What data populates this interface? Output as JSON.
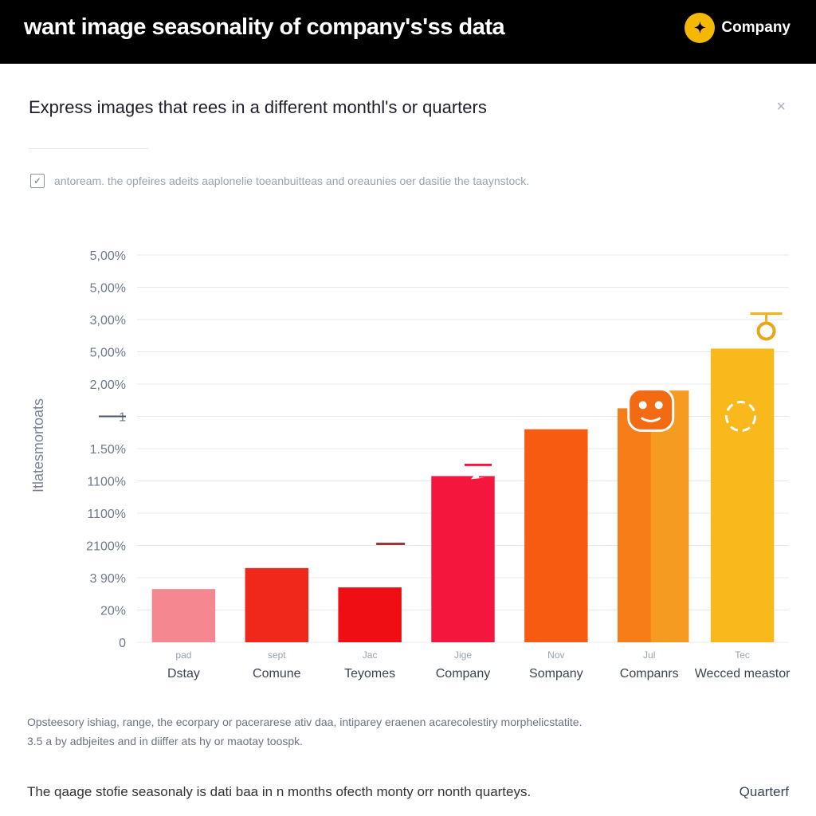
{
  "header": {
    "title": "want image seasonality of company's'ss data",
    "brand_name": "Company",
    "brand_icon": "sun-icon",
    "brand_color": "#f5b800"
  },
  "panel": {
    "subtitle": "Express images that rees in a different monthl's or quarters",
    "close_label": "×",
    "note": "antoream. the opfeires adeits aaplonelie toeanbuitteas and oreaunies oer dasitie the taaynstock."
  },
  "chart_data": {
    "type": "bar",
    "title": "Express images that rees in a different monthl's or quarters",
    "ylabel": "Itlatesmortoats",
    "xlabel": "",
    "y_tick_labels": [
      "0",
      "20%",
      "3 90%",
      "2100%",
      "1100%",
      "1100%",
      "1.50%",
      "1",
      "2,00%",
      "5,00%",
      "3,00%",
      "5,00%",
      "5,00%"
    ],
    "ylim": [
      0,
      12
    ],
    "categories": [
      "Dstay",
      "Comune",
      "Teyomes",
      "Company",
      "Sompany",
      "Companrs",
      "Wecced meastor"
    ],
    "category_sublabels": [
      "pad",
      "sept",
      "Jac",
      "Jige",
      "Nov",
      "Jul",
      "Tec"
    ],
    "values": [
      1.65,
      2.3,
      1.7,
      5.15,
      6.6,
      7.25,
      9.1
    ],
    "overlay_values": [
      null,
      null,
      null,
      null,
      null,
      7.8,
      null
    ],
    "colors": [
      "#f4878f",
      "#f0281c",
      "#ef0e14",
      "#f4163d",
      "#f75b12",
      "#f77d18",
      "#f9b81c"
    ],
    "overlay_colors": [
      null,
      null,
      null,
      null,
      null,
      "#f59b22",
      null
    ],
    "annotation_icons": [
      "",
      "",
      "minus-icon",
      "cursor-icon",
      "",
      "mask-icon",
      "medal-icon"
    ],
    "grid": true
  },
  "footer": {
    "line1": "Opsteesory ishiag, range, the ecorpary or pacerarese ativ daa, intiparey eraenen acarecolestiry morphelicstatite.",
    "line2": "3.5 a by adbjeites and in diiffer ats hy or maotay toospk.",
    "bottom_text": "The qaage stofie seasonaly is dati baa in n months ofecth monty orr nonth quarteys.",
    "bottom_right": "Quarterf"
  }
}
